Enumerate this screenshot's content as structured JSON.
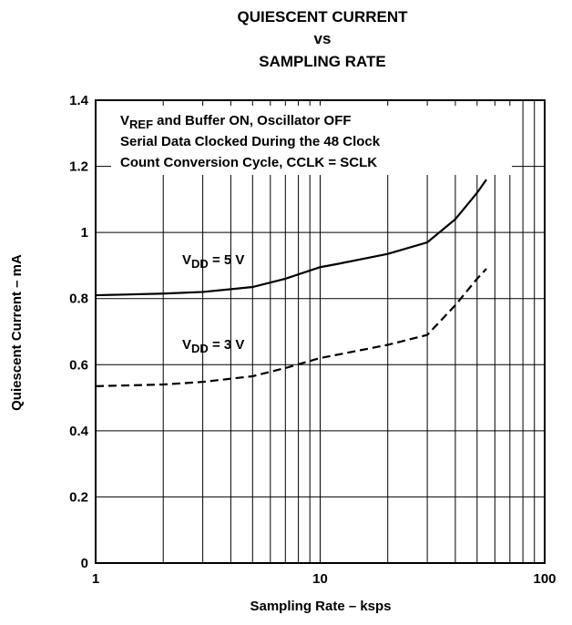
{
  "chart_data": {
    "type": "line",
    "title": [
      "QUIESCENT CURRENT",
      "vs",
      "SAMPLING RATE"
    ],
    "xlabel": "Sampling Rate – ksps",
    "ylabel": "Quiescent Current – mA",
    "xscale": "log",
    "xlim": [
      1,
      100
    ],
    "xticks": [
      1,
      10,
      100
    ],
    "xminor": [
      2,
      3,
      4,
      5,
      6,
      7,
      8,
      9,
      20,
      30,
      40,
      50,
      60,
      70,
      80,
      90
    ],
    "ylim": [
      0,
      1.4
    ],
    "yticks": [
      0,
      0.2,
      0.4,
      0.6,
      0.8,
      1,
      1.2,
      1.4
    ],
    "grid": true,
    "annotation": [
      [
        {
          "text": "V"
        },
        {
          "sub": "REF"
        },
        {
          "text": " and Buffer ON, Oscillator OFF"
        }
      ],
      [
        {
          "text": "Serial Data Clocked During the 48 Clock"
        }
      ],
      [
        {
          "text": "Count Conversion Cycle, CCLK = SCLK"
        }
      ]
    ],
    "series": [
      {
        "name": {
          "base": "V",
          "sub": "DD",
          "rest": " = 5 V"
        },
        "color": "#000000",
        "dash": "solid",
        "x": [
          1,
          2,
          3,
          5,
          7,
          10,
          12,
          20,
          30,
          40,
          50,
          55
        ],
        "values": [
          0.81,
          0.815,
          0.82,
          0.835,
          0.86,
          0.895,
          0.905,
          0.935,
          0.97,
          1.04,
          1.12,
          1.16
        ]
      },
      {
        "name": {
          "base": "V",
          "sub": "DD",
          "rest": " = 3 V"
        },
        "color": "#000000",
        "dash": "dashed",
        "x": [
          1,
          2,
          3,
          5,
          7,
          10,
          20,
          30,
          40,
          50,
          55
        ],
        "values": [
          0.535,
          0.54,
          0.548,
          0.565,
          0.59,
          0.62,
          0.66,
          0.69,
          0.78,
          0.86,
          0.89
        ]
      }
    ]
  }
}
